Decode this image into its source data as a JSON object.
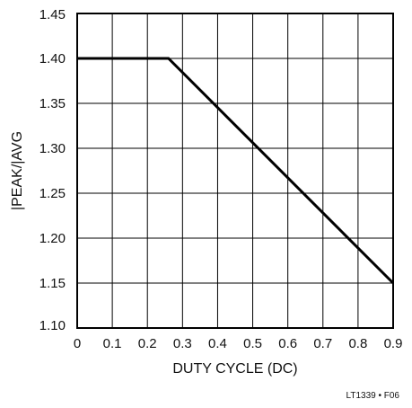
{
  "chart_data": {
    "type": "line",
    "xlabel": "DUTY CYCLE (DC)",
    "ylabel": "|PEAK/|AVG",
    "xlim": [
      0,
      0.9
    ],
    "ylim": [
      1.1,
      1.45
    ],
    "x_ticks": [
      "0",
      "0.1",
      "0.2",
      "0.3",
      "0.4",
      "0.5",
      "0.6",
      "0.7",
      "0.8",
      "0.9"
    ],
    "y_ticks": [
      "1.10",
      "1.15",
      "1.20",
      "1.25",
      "1.30",
      "1.35",
      "1.40",
      "1.45"
    ],
    "grid": true,
    "series": [
      {
        "x": [
          0,
          0.26,
          0.9
        ],
        "y": [
          1.4,
          1.4,
          1.15
        ]
      }
    ],
    "line_color": "#000000"
  },
  "figure_id": "LT1339 • F06"
}
